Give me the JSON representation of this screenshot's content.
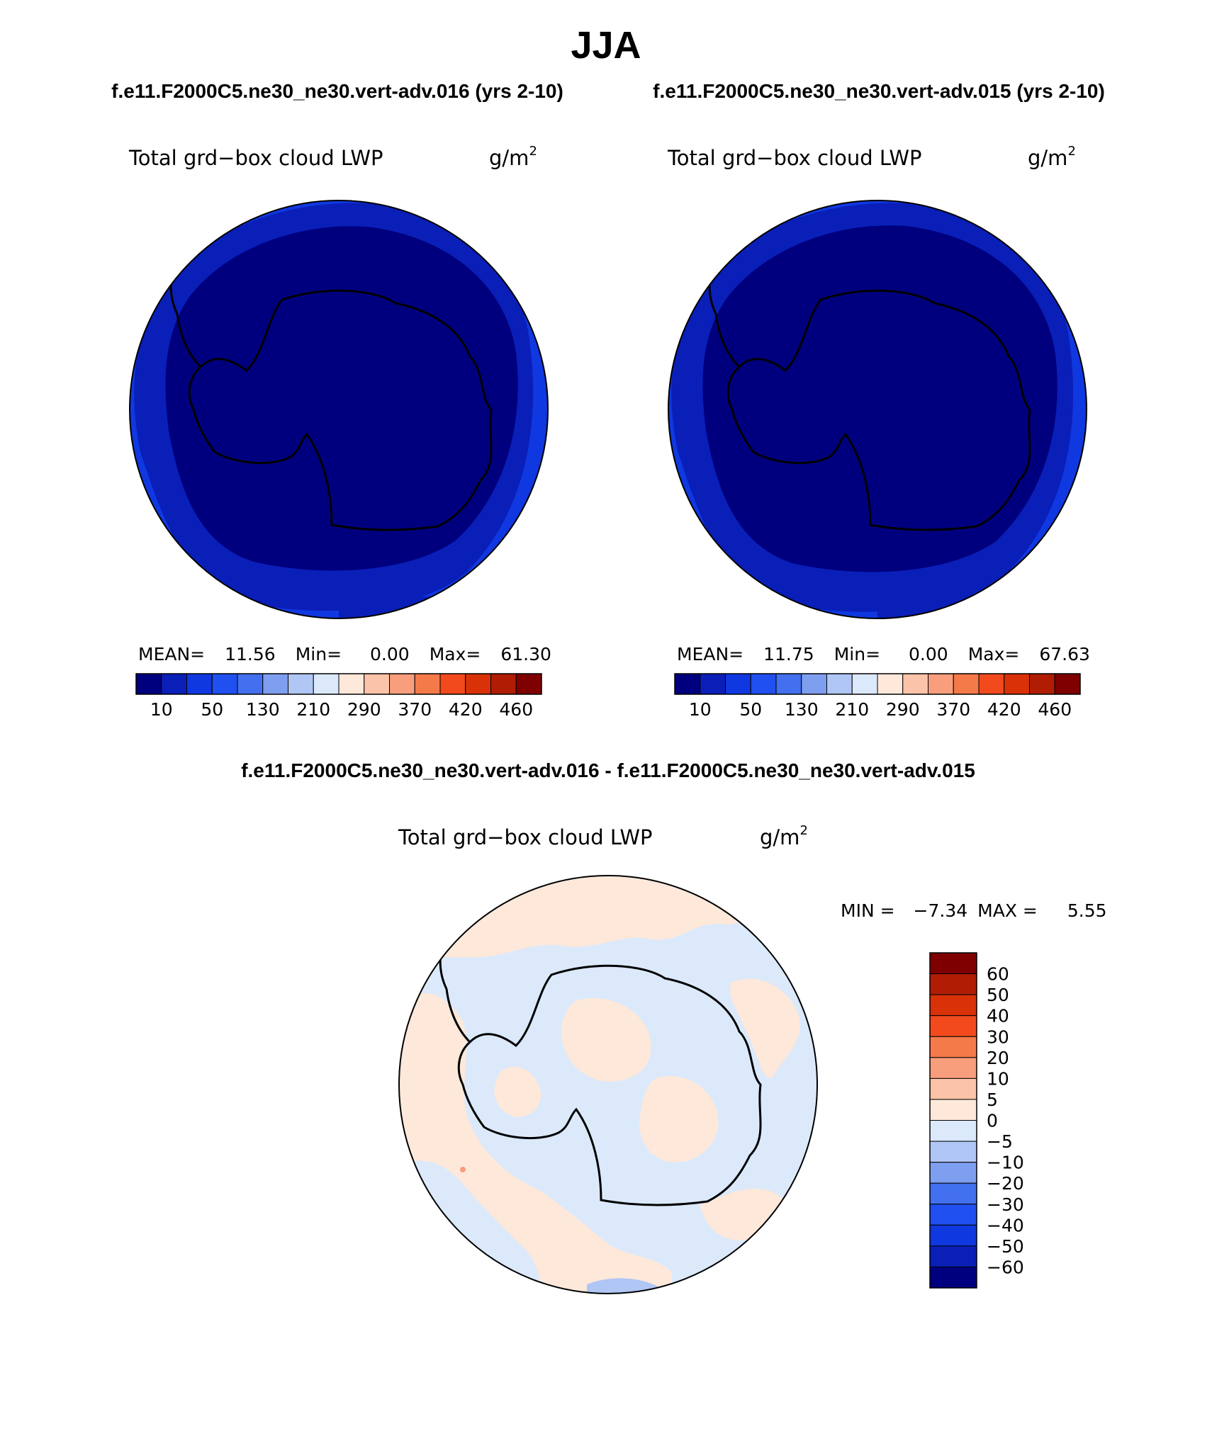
{
  "figure": {
    "season": "JJA",
    "subtitle_left": "f.e11.F2000C5.ne30_ne30.vert-adv.016 (yrs 2-10)",
    "subtitle_right": "f.e11.F2000C5.ne30_ne30.vert-adv.015 (yrs 2-10)",
    "diff_title": "f.e11.F2000C5.ne30_ne30.vert-adv.016 - f.e11.F2000C5.ne30_ne30.vert-adv.015"
  },
  "panels": [
    {
      "variable": "Total grd−box cloud LWP",
      "units_base": "g/m",
      "units_exp": "2",
      "mean_label": "MEAN=",
      "mean": "11.56",
      "min_label": "Min=",
      "min": "0.00",
      "max_label": "Max=",
      "max": "61.30"
    },
    {
      "variable": "Total grd−box cloud LWP",
      "units_base": "g/m",
      "units_exp": "2",
      "mean_label": "MEAN=",
      "mean": "11.75",
      "min_label": "Min=",
      "min": "0.00",
      "max_label": "Max=",
      "max": "67.63"
    }
  ],
  "diff_panel": {
    "variable": "Total grd−box cloud LWP",
    "units_base": "g/m",
    "units_exp": "2",
    "min_label": "MIN =",
    "min": "−7.34",
    "max_label": "MAX =",
    "max": "5.55"
  },
  "colorbar_main": {
    "colors": [
      "#00007f",
      "#0a1fb8",
      "#1038e0",
      "#2050f0",
      "#4270ef",
      "#7e9ef0",
      "#b0c6f4",
      "#dbe9fb",
      "#fde8da",
      "#fbc4a8",
      "#f89e7c",
      "#f57a4a",
      "#f24a1c",
      "#d93208",
      "#b01d04",
      "#7f0000"
    ],
    "tick_labels": [
      "10",
      "50",
      "130",
      "210",
      "290",
      "370",
      "420",
      "460"
    ]
  },
  "colorbar_diff": {
    "colors": [
      "#7f0000",
      "#b01d04",
      "#d93208",
      "#f24a1c",
      "#f57a4a",
      "#f89e7c",
      "#fbc4a8",
      "#fde8da",
      "#dbe9fb",
      "#b0c6f4",
      "#7e9ef0",
      "#4270ef",
      "#2050f0",
      "#1038e0",
      "#0a1fb8",
      "#00007f"
    ],
    "tick_labels": [
      "60",
      "50",
      "40",
      "30",
      "20",
      "10",
      "5",
      "0",
      "−5",
      "−10",
      "−20",
      "−30",
      "−40",
      "−50",
      "−60"
    ]
  },
  "map_colors": {
    "deep": "#00007f",
    "mid": "#0a1fb8",
    "outer": "#1038e0",
    "pos": "#fde8da",
    "neg": "#dbe9fb",
    "spot": "#f89e7c",
    "neg_strong": "#b0c6f4"
  }
}
